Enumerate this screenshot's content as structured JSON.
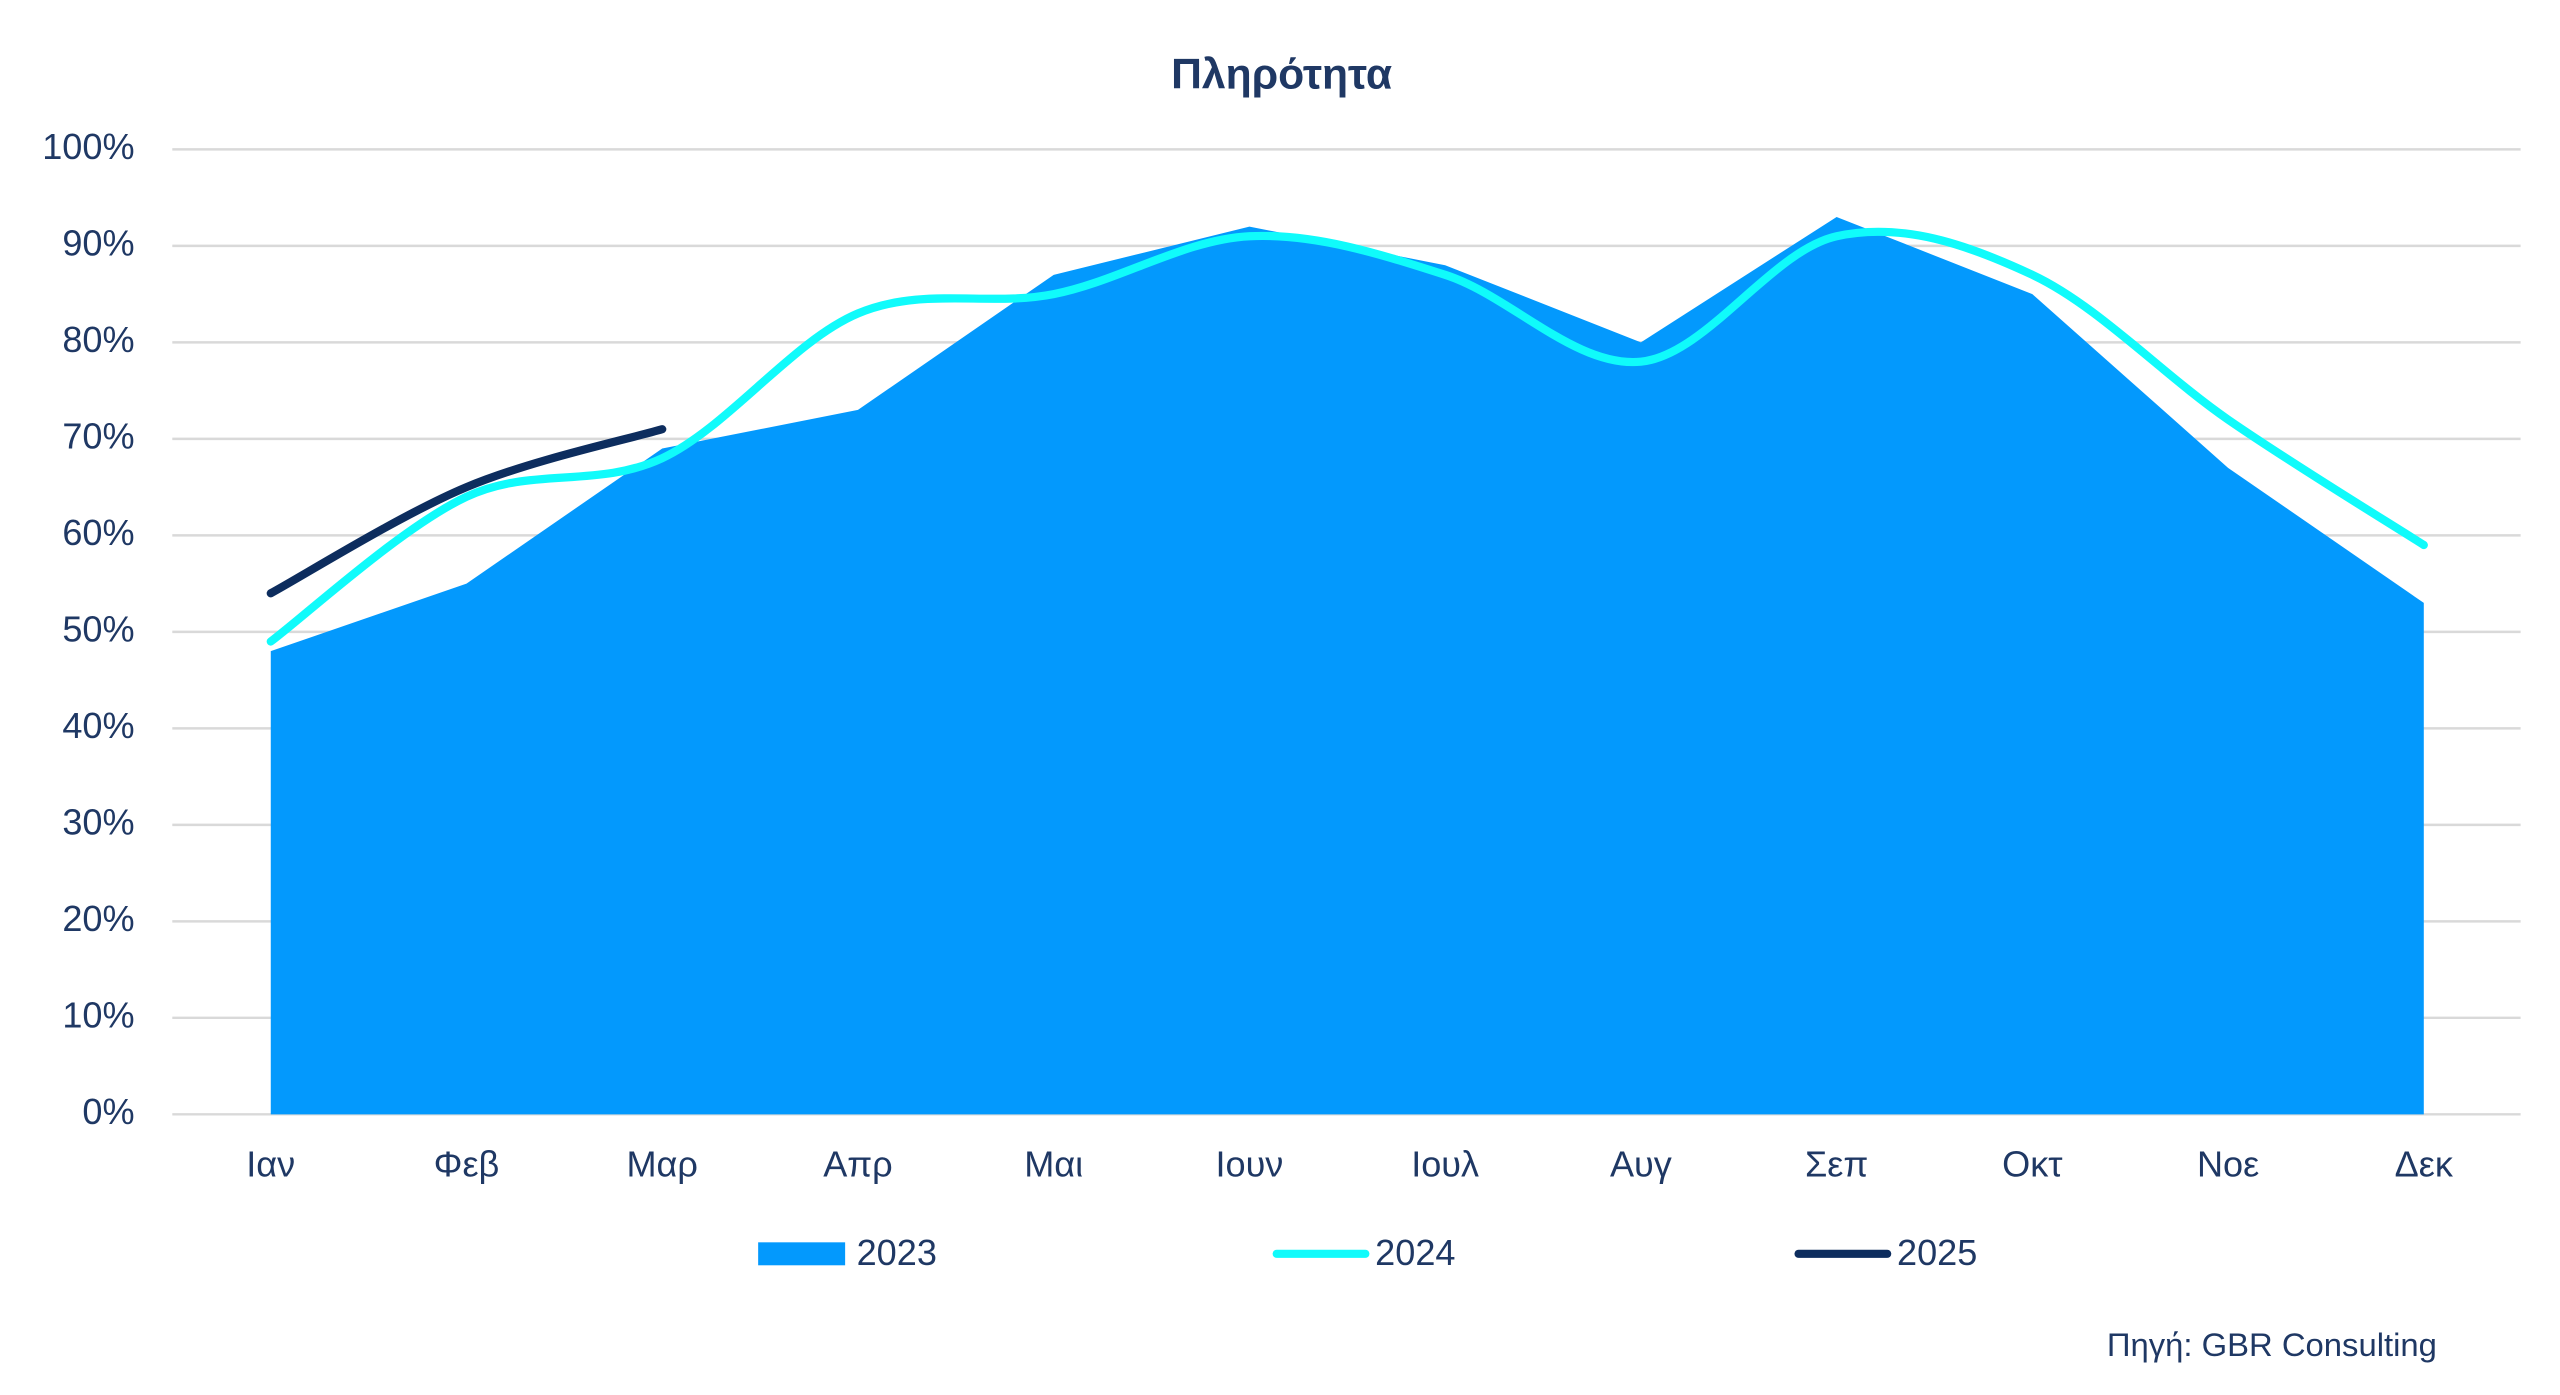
{
  "chart_data": {
    "type": "line",
    "title": "Πληρότητα",
    "categories": [
      "Ιαν",
      "Φεβ",
      "Μαρ",
      "Απρ",
      "Μαι",
      "Ιουν",
      "Ιουλ",
      "Αυγ",
      "Σεπ",
      "Οκτ",
      "Νοε",
      "Δεκ"
    ],
    "series": [
      {
        "name": "2023",
        "kind": "area",
        "color": "#0399fd",
        "values": [
          48,
          55,
          69,
          73,
          87,
          92,
          88,
          80,
          93,
          85,
          67,
          53
        ]
      },
      {
        "name": "2024",
        "kind": "line",
        "color": "#10fbfb",
        "values": [
          49,
          64,
          68,
          83,
          85,
          91,
          87,
          78,
          91,
          87,
          72,
          59
        ]
      },
      {
        "name": "2025",
        "kind": "line",
        "color": "#0d2d5e",
        "values": [
          54,
          65,
          71,
          null,
          null,
          null,
          null,
          null,
          null,
          null,
          null,
          null
        ]
      }
    ],
    "ylim": [
      0,
      100
    ],
    "yticks": [
      {
        "value": 0,
        "label": "0%"
      },
      {
        "value": 10,
        "label": "10%"
      },
      {
        "value": 20,
        "label": "20%"
      },
      {
        "value": 30,
        "label": "30%"
      },
      {
        "value": 40,
        "label": "40%"
      },
      {
        "value": 50,
        "label": "50%"
      },
      {
        "value": 60,
        "label": "60%"
      },
      {
        "value": 70,
        "label": "70%"
      },
      {
        "value": 80,
        "label": "80%"
      },
      {
        "value": 90,
        "label": "90%"
      },
      {
        "value": 100,
        "label": "100%"
      }
    ],
    "grid": true,
    "legend": "bottom",
    "source": "Πηγή: GBR Consulting"
  }
}
